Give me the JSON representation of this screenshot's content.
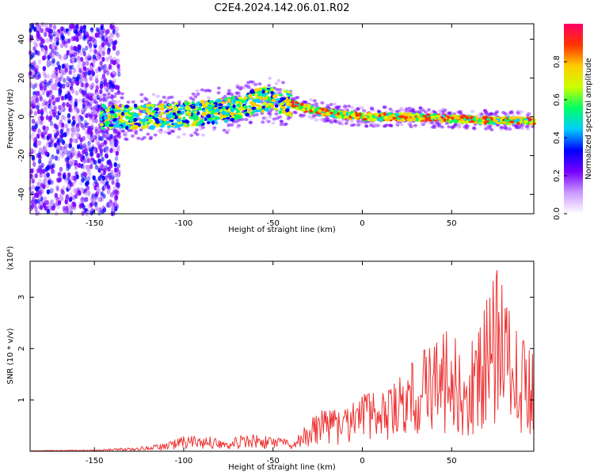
{
  "title": "C2E4.2024.142.06.01.R02",
  "chart_data": [
    {
      "type": "heatmap",
      "xlabel": "Height of straight line (km)",
      "ylabel": "Frequency (Hz)",
      "xlim": [
        -186,
        96
      ],
      "ylim": [
        -50,
        48
      ],
      "x_ticks": [
        -150,
        -100,
        -50,
        0,
        50
      ],
      "y_ticks": [
        -40,
        -20,
        0,
        20,
        40
      ],
      "colorbar": {
        "label": "Normalized spectral amplitude",
        "range": [
          0,
          1
        ],
        "ticks": [
          "0.0",
          "0.2",
          "0.4",
          "0.6",
          "0.8"
        ],
        "colors": [
          "#ffffff",
          "#cc99ff",
          "#7700ff",
          "#0000ff",
          "#00ccff",
          "#00ff66",
          "#ccff00",
          "#ffcc00",
          "#ff3300",
          "#ff0066"
        ]
      },
      "ridge": [
        {
          "x": -140,
          "y": 0
        },
        {
          "x": -120,
          "y": 0
        },
        {
          "x": -100,
          "y": 1
        },
        {
          "x": -80,
          "y": 3
        },
        {
          "x": -65,
          "y": 6
        },
        {
          "x": -55,
          "y": 9
        },
        {
          "x": -45,
          "y": 8
        },
        {
          "x": -38,
          "y": 6
        },
        {
          "x": -25,
          "y": 3
        },
        {
          "x": -10,
          "y": 1
        },
        {
          "x": 0,
          "y": 0
        },
        {
          "x": 25,
          "y": 0
        },
        {
          "x": 50,
          "y": -1
        },
        {
          "x": 75,
          "y": -2
        },
        {
          "x": 95,
          "y": -2
        }
      ]
    },
    {
      "type": "line",
      "xlabel": "Height of straight line (km)",
      "ylabel": "SNR (10 * v/v)",
      "y_multiplier": "(x10⁴)",
      "xlim": [
        -186,
        96
      ],
      "ylim": [
        0,
        3.7
      ],
      "x_ticks": [
        -150,
        -100,
        -50,
        0,
        50
      ],
      "y_ticks": [
        1,
        2,
        3
      ],
      "color": "#ee3333",
      "envelope": [
        {
          "x": -186,
          "y": 0.01
        },
        {
          "x": -150,
          "y": 0.03
        },
        {
          "x": -130,
          "y": 0.07
        },
        {
          "x": -110,
          "y": 0.15
        },
        {
          "x": -100,
          "y": 0.3
        },
        {
          "x": -80,
          "y": 0.28
        },
        {
          "x": -60,
          "y": 0.32
        },
        {
          "x": -40,
          "y": 0.22
        },
        {
          "x": -30,
          "y": 0.6
        },
        {
          "x": -20,
          "y": 0.9
        },
        {
          "x": -10,
          "y": 0.8
        },
        {
          "x": 0,
          "y": 1.1
        },
        {
          "x": 15,
          "y": 1.2
        },
        {
          "x": 30,
          "y": 1.9
        },
        {
          "x": 45,
          "y": 2.4
        },
        {
          "x": 60,
          "y": 2.0
        },
        {
          "x": 76,
          "y": 3.6
        },
        {
          "x": 85,
          "y": 2.4
        },
        {
          "x": 96,
          "y": 1.9
        }
      ]
    }
  ]
}
